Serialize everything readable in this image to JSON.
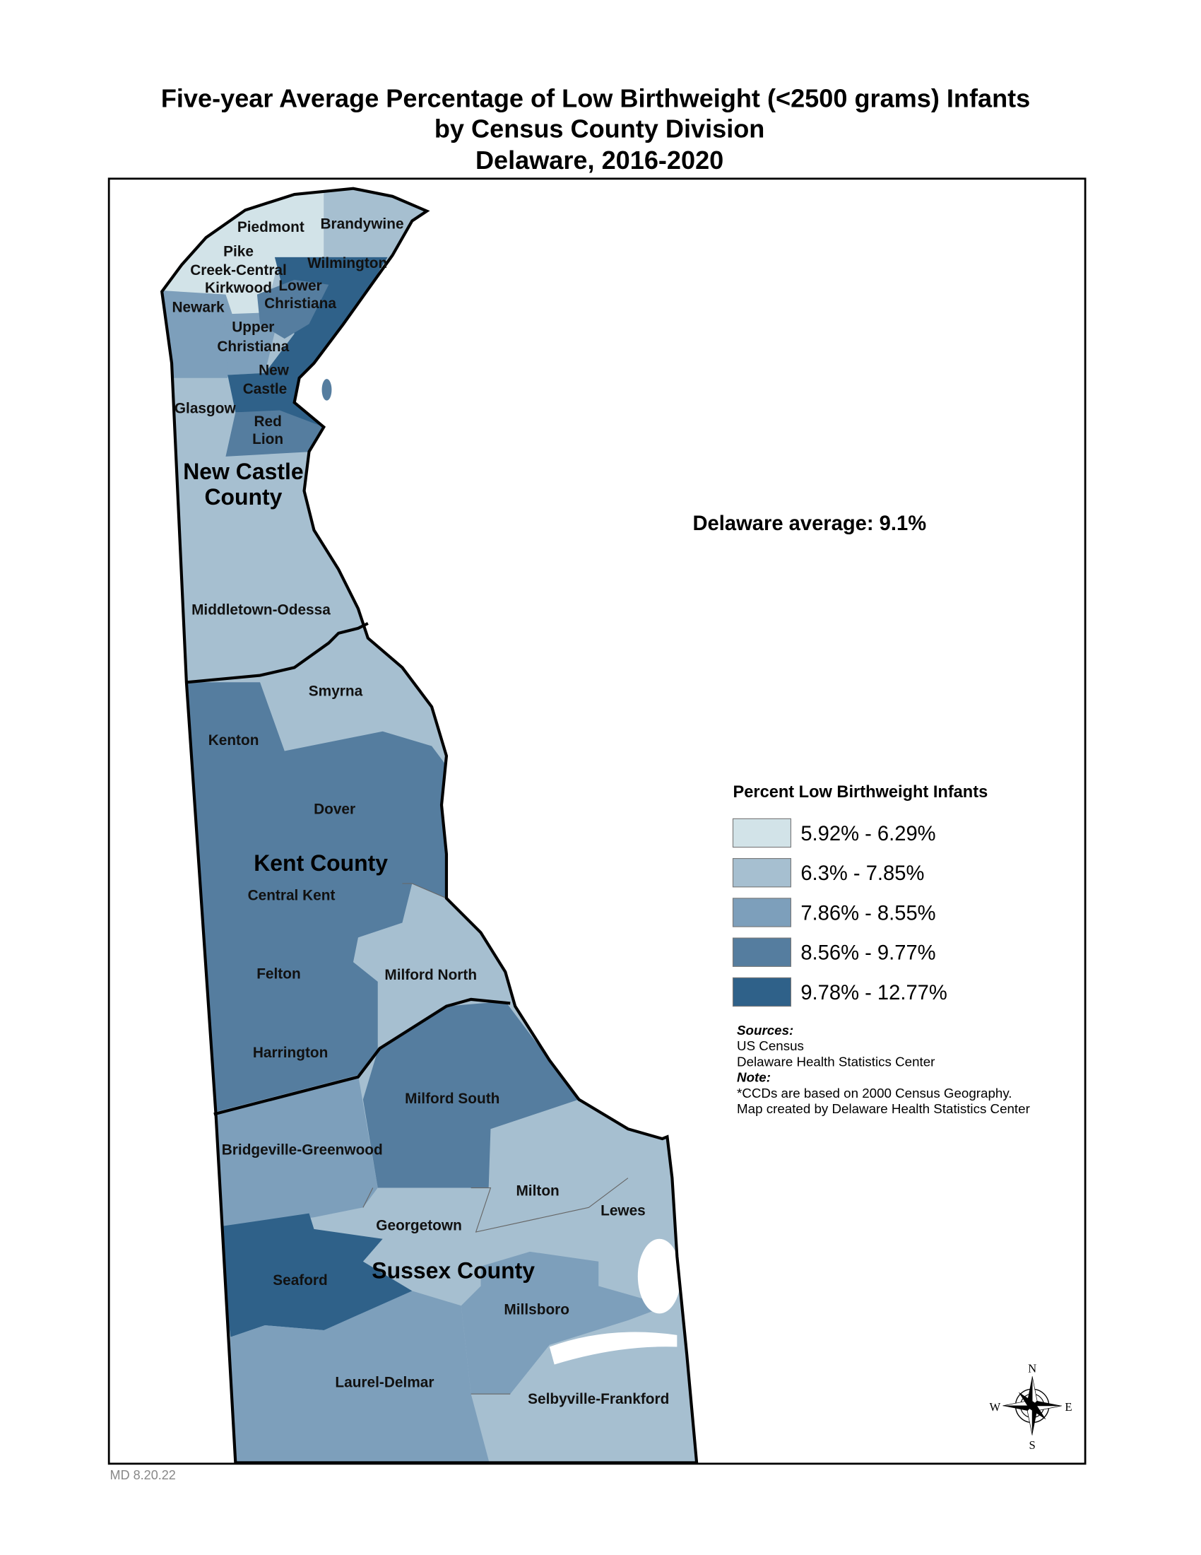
{
  "title": {
    "line1": "Five-year Average Percentage of Low Birthweight (<2500 grams) Infants",
    "line2": "by Census County Division",
    "line3": "Delaware, 2016-2020"
  },
  "state_average": "Delaware average:  9.1%",
  "counties": [
    "New Castle",
    "County",
    "Kent County",
    "Sussex County"
  ],
  "regions": [
    {
      "name": "Piedmont",
      "class": 1
    },
    {
      "name": "Brandywine",
      "class": 2
    },
    {
      "name": "Pike",
      "class": 1
    },
    {
      "name": "Creek-Central",
      "class": 1
    },
    {
      "name": "Wilmington",
      "class": 5
    },
    {
      "name": "Kirkwood",
      "class": 1
    },
    {
      "name": "Lower",
      "class": 4
    },
    {
      "name": "Christiana",
      "class": 4
    },
    {
      "name": "Newark",
      "class": 3
    },
    {
      "name": "Upper",
      "class": 3
    },
    {
      "name": "Christiana",
      "class": 3
    },
    {
      "name": "New",
      "class": 5
    },
    {
      "name": "Castle",
      "class": 5
    },
    {
      "name": "Glasgow",
      "class": 2
    },
    {
      "name": "Red",
      "class": 4
    },
    {
      "name": "Lion",
      "class": 4
    },
    {
      "name": "Middletown-Odessa",
      "class": 2
    },
    {
      "name": "Smyrna",
      "class": 2
    },
    {
      "name": "Kenton",
      "class": 4
    },
    {
      "name": "Dover",
      "class": 4
    },
    {
      "name": "Central Kent",
      "class": 4
    },
    {
      "name": "Felton",
      "class": 4
    },
    {
      "name": "Milford North",
      "class": 2
    },
    {
      "name": "Harrington",
      "class": 4
    },
    {
      "name": "Milford South",
      "class": 4
    },
    {
      "name": "Bridgeville-Greenwood",
      "class": 3
    },
    {
      "name": "Milton",
      "class": 2
    },
    {
      "name": "Lewes",
      "class": 2
    },
    {
      "name": "Georgetown",
      "class": 2
    },
    {
      "name": "Seaford",
      "class": 5
    },
    {
      "name": "Millsboro",
      "class": 3
    },
    {
      "name": "Laurel-Delmar",
      "class": 3
    },
    {
      "name": "Selbyville-Frankford",
      "class": 2
    }
  ],
  "legend": {
    "title": "Percent Low Birthweight Infants",
    "classes": [
      {
        "label": "5.92% - 6.29%",
        "color": "#d2e3e8"
      },
      {
        "label": "6.3% - 7.85%",
        "color": "#a6bfd0"
      },
      {
        "label": "7.86% - 8.55%",
        "color": "#7d9fbb"
      },
      {
        "label": "8.56% - 9.77%",
        "color": "#557d9f"
      },
      {
        "label": "9.78% - 12.77%",
        "color": "#2f6189"
      }
    ]
  },
  "notes": {
    "sources_heading": "Sources:",
    "source1": "US Census",
    "source2": "Delaware Health Statistics Center",
    "note_heading": "Note:",
    "note1": "*CCDs are based on 2000 Census Geography.",
    "note2": "Map created by Delaware Health Statistics Center"
  },
  "compass": {
    "n": "N",
    "s": "S",
    "e": "E",
    "w": "W"
  },
  "footer": "MD 8.20.22"
}
